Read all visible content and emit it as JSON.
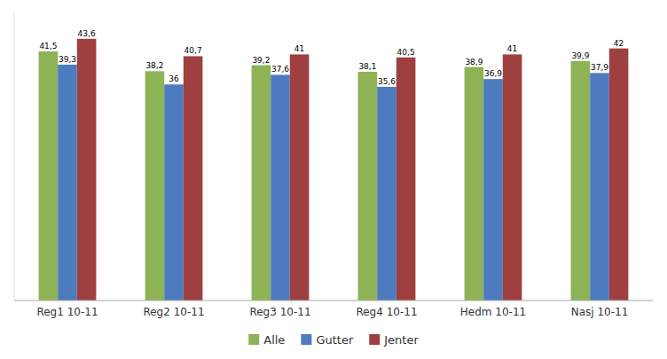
{
  "chart_data": {
    "type": "bar",
    "categories": [
      "Reg1 10-11",
      "Reg2 10-11",
      "Reg3 10-11",
      "Reg4 10-11",
      "Hedm 10-11",
      "Nasj 10-11"
    ],
    "series": [
      {
        "name": "Alle",
        "color": "#8db356",
        "values": [
          41.5,
          38.2,
          39.2,
          38.1,
          38.9,
          39.9
        ],
        "value_labels": [
          "41,5",
          "38,2",
          "39,2",
          "38,1",
          "38,9",
          "39,9"
        ]
      },
      {
        "name": "Gutter",
        "color": "#4d7bbf",
        "values": [
          39.3,
          36.0,
          37.6,
          35.6,
          36.9,
          37.9
        ],
        "value_labels": [
          "39,3",
          "36",
          "37,6",
          "35,6",
          "36,9",
          "37,9"
        ]
      },
      {
        "name": "Jenter",
        "color": "#9e4040",
        "values": [
          43.6,
          40.7,
          41.0,
          40.5,
          41.0,
          42.0
        ],
        "value_labels": [
          "43,6",
          "40,7",
          "41",
          "40,5",
          "41",
          "42"
        ]
      }
    ],
    "ylim": [
      0,
      48
    ],
    "grid": false,
    "legend": "bottom",
    "data_labels": true,
    "tick_labels": "x"
  }
}
